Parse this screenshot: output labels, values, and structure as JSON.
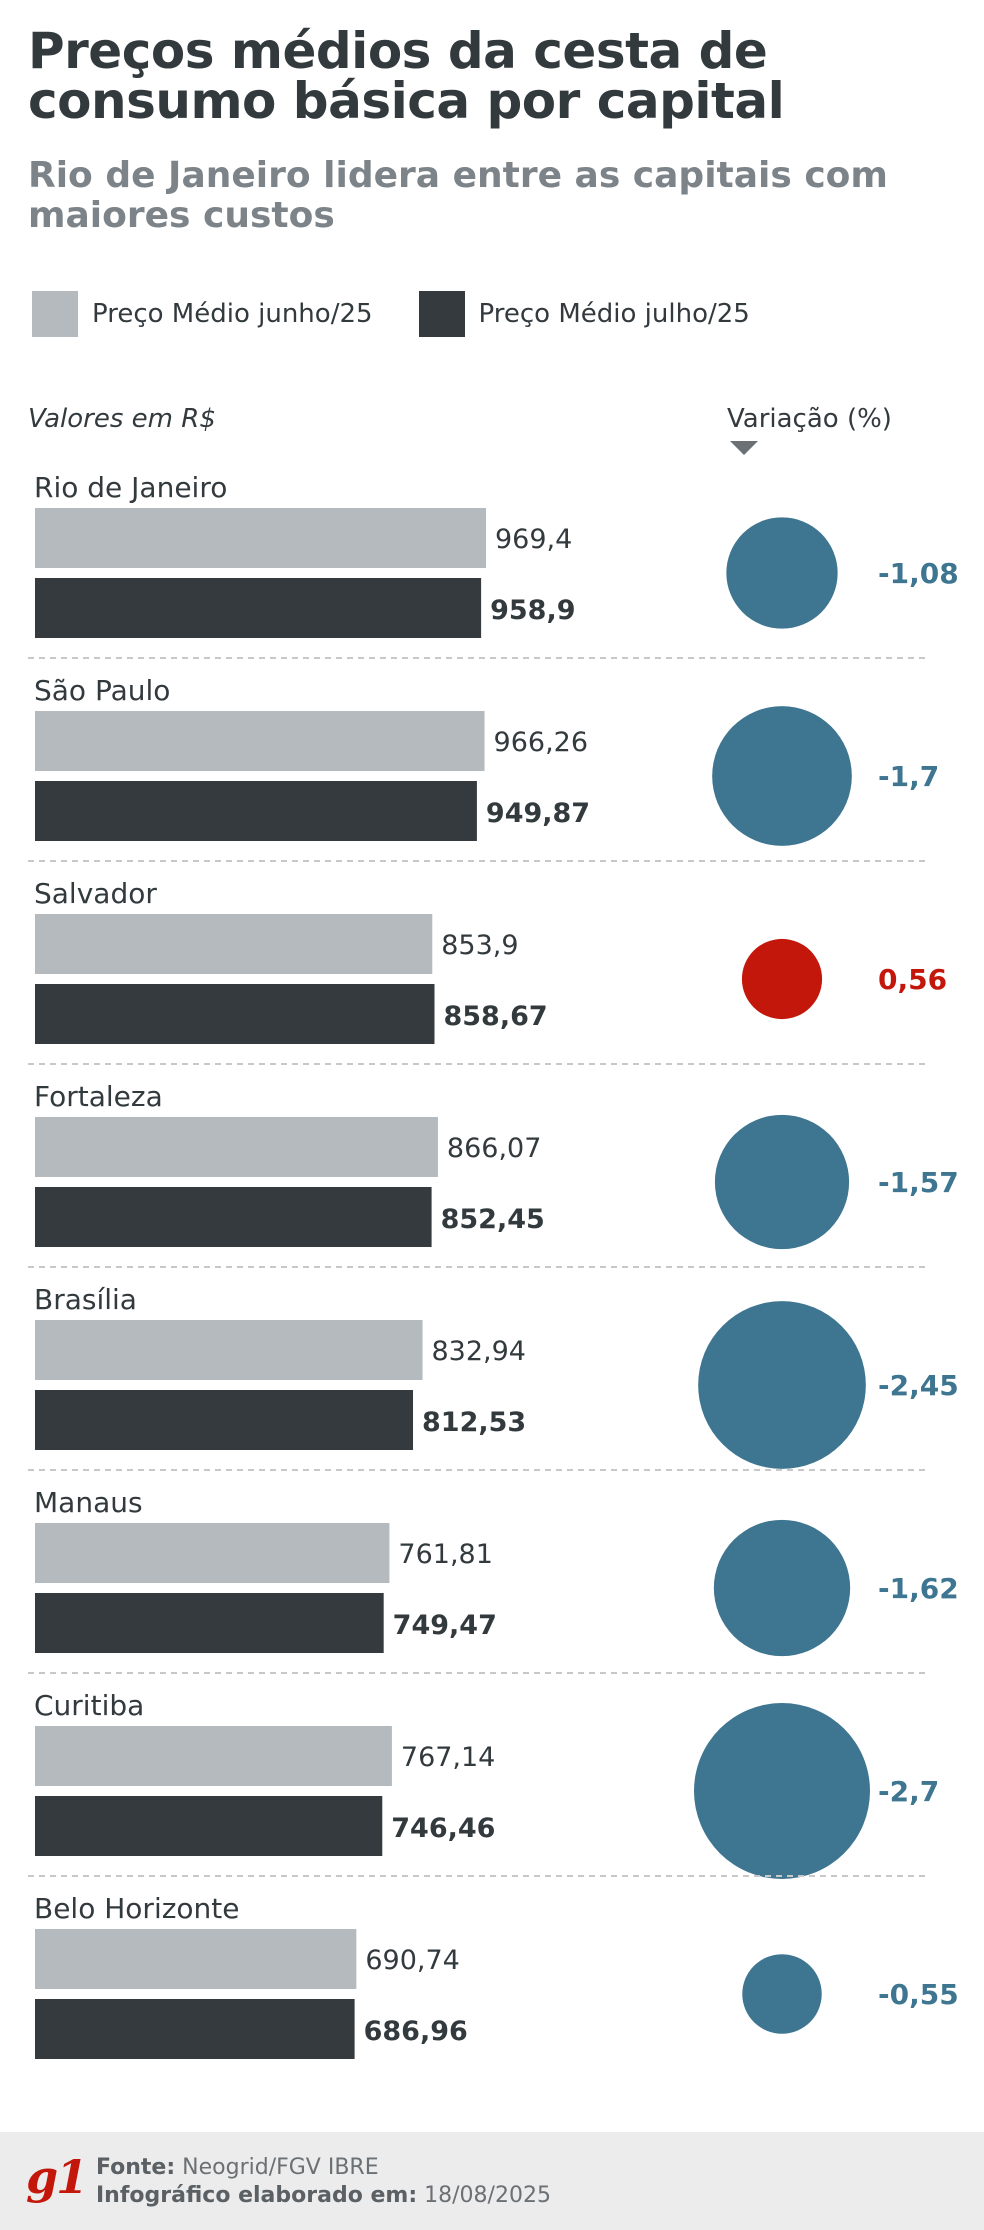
{
  "header": {
    "title": "Preços médios da cesta de consumo básica por capital",
    "subtitle": "Rio de Janeiro lidera entre as capitais com maiores custos"
  },
  "legend": {
    "june_label": "Preço Médio junho/25",
    "july_label": "Preço Médio julho/25"
  },
  "units_label": "Valores em R$",
  "variation_header": "Variação (%)",
  "colors": {
    "june": "#b4babd",
    "july": "#343a3e",
    "negative": "#3e7590",
    "positive": "#c4170c",
    "divider": "#c8c8c8"
  },
  "chart_data": {
    "type": "bar",
    "orientation": "horizontal",
    "categories": [
      "Rio de Janeiro",
      "São Paulo",
      "Salvador",
      "Fortaleza",
      "Brasília",
      "Manaus",
      "Curitiba",
      "Belo Horizonte"
    ],
    "series": [
      {
        "name": "Preço Médio junho/25",
        "values": [
          969.4,
          966.26,
          853.9,
          866.07,
          832.94,
          761.81,
          767.14,
          690.74
        ],
        "labels": [
          "969,4",
          "966,26",
          "853,9",
          "866,07",
          "832,94",
          "761,81",
          "767,14",
          "690,74"
        ]
      },
      {
        "name": "Preço Médio julho/25",
        "values": [
          958.9,
          949.87,
          858.67,
          852.45,
          812.53,
          749.47,
          746.46,
          686.96
        ],
        "labels": [
          "958,9",
          "949,87",
          "858,67",
          "852,45",
          "812,53",
          "749,47",
          "746,46",
          "686,96"
        ]
      }
    ],
    "variation": {
      "values": [
        -1.08,
        -1.7,
        0.56,
        -1.57,
        -2.45,
        -1.62,
        -2.7,
        -0.55
      ],
      "labels": [
        "-1,08",
        "-1,7",
        "0,56",
        "-1,57",
        "-2,45",
        "-1,62",
        "-2,7",
        "-0,55"
      ]
    },
    "xlim": [
      0,
      1000
    ]
  },
  "footer": {
    "logo": "g1",
    "source_label": "Fonte:",
    "source_value": "Neogrid/FGV IBRE",
    "date_label": "Infográfico elaborado em:",
    "date_value": "18/08/2025"
  }
}
